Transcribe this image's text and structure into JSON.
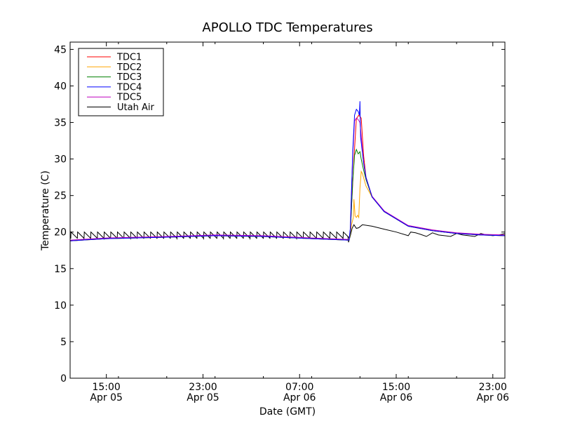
{
  "chart_data": {
    "type": "line",
    "title": "APOLLO TDC Temperatures",
    "xlabel": "Date (GMT)",
    "ylabel": "Temperature (C)",
    "xlim": [
      12.0,
      48.0
    ],
    "ylim": [
      0,
      46
    ],
    "x_unit": "hours since Apr 05 00:00 GMT",
    "yticks": [
      0,
      5,
      10,
      15,
      20,
      25,
      30,
      35,
      40,
      45
    ],
    "xticks": [
      {
        "x": 15,
        "time": "15:00",
        "date": "Apr 05"
      },
      {
        "x": 23,
        "time": "23:00",
        "date": "Apr 05"
      },
      {
        "x": 31,
        "time": "07:00",
        "date": "Apr 06"
      },
      {
        "x": 39,
        "time": "15:00",
        "date": "Apr 06"
      },
      {
        "x": 47,
        "time": "23:00",
        "date": "Apr 06"
      }
    ],
    "grid": false,
    "legend_position": "top-left",
    "series": [
      {
        "name": "TDC1",
        "color": "#ff0000",
        "x": [
          12.0,
          15.0,
          20.0,
          24.0,
          28.0,
          32.0,
          35.1,
          35.2,
          35.5,
          35.7,
          35.9,
          36.1,
          36.3,
          36.5,
          37.0,
          38.0,
          40.0,
          42.0,
          44.0,
          46.0,
          48.0
        ],
        "y": [
          18.8,
          19.1,
          19.3,
          19.5,
          19.4,
          19.1,
          18.9,
          20.2,
          30.0,
          35.5,
          36.0,
          35.6,
          30.5,
          27.5,
          24.8,
          22.8,
          20.8,
          20.2,
          19.8,
          19.6,
          19.5
        ]
      },
      {
        "name": "TDC2",
        "color": "#ffa500",
        "x": [
          12.0,
          15.0,
          20.0,
          24.0,
          28.0,
          32.0,
          35.1,
          35.2,
          35.3,
          35.45,
          35.5,
          35.6,
          35.7,
          35.8,
          35.9,
          36.0,
          36.1,
          36.2,
          36.5,
          37.0,
          38.0,
          40.0,
          42.0,
          44.0,
          46.0,
          48.0
        ],
        "y": [
          18.8,
          19.1,
          19.3,
          19.5,
          19.4,
          19.1,
          18.9,
          19.8,
          21.0,
          22.0,
          24.5,
          22.2,
          22.0,
          22.3,
          22.0,
          26.0,
          28.3,
          28.0,
          26.3,
          24.8,
          22.8,
          20.8,
          20.2,
          19.8,
          19.6,
          19.5
        ]
      },
      {
        "name": "TDC3",
        "color": "#008000",
        "x": [
          12.0,
          15.0,
          20.0,
          24.0,
          28.0,
          32.0,
          35.1,
          35.2,
          35.4,
          35.55,
          35.7,
          35.85,
          36.0,
          36.1,
          36.3,
          36.5,
          37.0,
          38.0,
          40.0,
          42.0,
          44.0,
          46.0,
          48.0
        ],
        "y": [
          18.8,
          19.1,
          19.3,
          19.5,
          19.4,
          19.1,
          18.9,
          20.0,
          27.0,
          30.5,
          31.3,
          30.7,
          31.0,
          30.0,
          28.5,
          27.2,
          24.8,
          22.8,
          20.8,
          20.2,
          19.8,
          19.6,
          19.5
        ]
      },
      {
        "name": "TDC4",
        "color": "#0000ff",
        "x": [
          12.0,
          15.0,
          20.0,
          24.0,
          28.0,
          32.0,
          35.1,
          35.2,
          35.4,
          35.55,
          35.7,
          35.85,
          35.95,
          36.0,
          36.05,
          36.3,
          36.5,
          37.0,
          38.0,
          40.0,
          42.0,
          44.0,
          46.0,
          48.0
        ],
        "y": [
          18.8,
          19.1,
          19.3,
          19.5,
          19.4,
          19.1,
          18.9,
          20.5,
          31.0,
          36.0,
          36.8,
          36.5,
          36.0,
          37.9,
          33.0,
          29.5,
          27.5,
          24.8,
          22.8,
          20.8,
          20.2,
          19.8,
          19.6,
          19.5
        ]
      },
      {
        "name": "TDC5",
        "color": "#bf00bf",
        "x": [
          12.0,
          15.0,
          20.0,
          24.0,
          28.0,
          32.0,
          35.1,
          35.2,
          35.4,
          35.55,
          35.7,
          35.85,
          36.0,
          36.3,
          36.5,
          37.0,
          38.0,
          40.0,
          42.0,
          44.0,
          46.0,
          48.0
        ],
        "y": [
          18.9,
          19.2,
          19.4,
          19.6,
          19.5,
          19.2,
          19.0,
          20.4,
          30.5,
          35.2,
          35.6,
          35.4,
          35.0,
          29.5,
          27.4,
          24.9,
          22.9,
          20.9,
          20.3,
          19.9,
          19.7,
          19.6
        ]
      },
      {
        "name": "Utah Air",
        "color": "#000000",
        "x": [
          12.0,
          35.0,
          35.05,
          35.2,
          35.35,
          35.5,
          35.7,
          35.9,
          36.2,
          37.0,
          38.0,
          39.0,
          40.0,
          40.2,
          40.6,
          41.0,
          41.5,
          42.0,
          42.5,
          43.0,
          43.5,
          44.0,
          44.5,
          45.0,
          45.5,
          46.0,
          46.5,
          47.0,
          47.5,
          48.0
        ],
        "y": [
          19.4,
          19.4,
          18.6,
          19.5,
          20.5,
          21.0,
          20.5,
          20.6,
          21.0,
          20.8,
          20.4,
          20.0,
          19.5,
          20.0,
          19.9,
          19.7,
          19.4,
          19.9,
          19.6,
          19.5,
          19.4,
          19.8,
          19.6,
          19.5,
          19.4,
          19.8,
          19.6,
          19.5,
          19.6,
          19.8
        ]
      }
    ],
    "utah_air_sawtooth": {
      "start": 12.05,
      "end": 34.9,
      "period": 0.55,
      "base": 19.1,
      "peak": 20.0
    }
  }
}
